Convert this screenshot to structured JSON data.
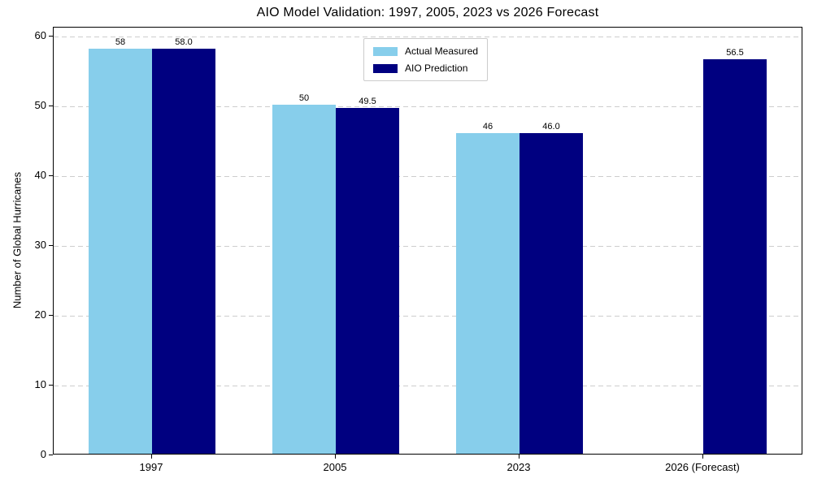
{
  "chart_data": {
    "type": "bar",
    "title": "AIO Model Validation: 1997, 2005, 2023 vs 2026 Forecast",
    "xlabel": "",
    "ylabel": "Number of Global Hurricanes",
    "categories": [
      "1997",
      "2005",
      "2023",
      "2026 (Forecast)"
    ],
    "series": [
      {
        "name": "Actual Measured",
        "color": "#87CEEB",
        "values": [
          58,
          50,
          46,
          null
        ],
        "value_labels": [
          "58",
          "50",
          "46",
          ""
        ]
      },
      {
        "name": "AIO Prediction",
        "color": "#000080",
        "values": [
          58.0,
          49.5,
          46.0,
          56.5
        ],
        "value_labels": [
          "58.0",
          "49.5",
          "46.0",
          "56.5"
        ]
      }
    ],
    "ylim": [
      0,
      61.3
    ],
    "yticks": [
      0,
      10,
      20,
      30,
      40,
      50,
      60
    ],
    "grid": "horizontal-dashed",
    "gridline_color": "#cdcdcd",
    "legend_position": "upper center"
  }
}
